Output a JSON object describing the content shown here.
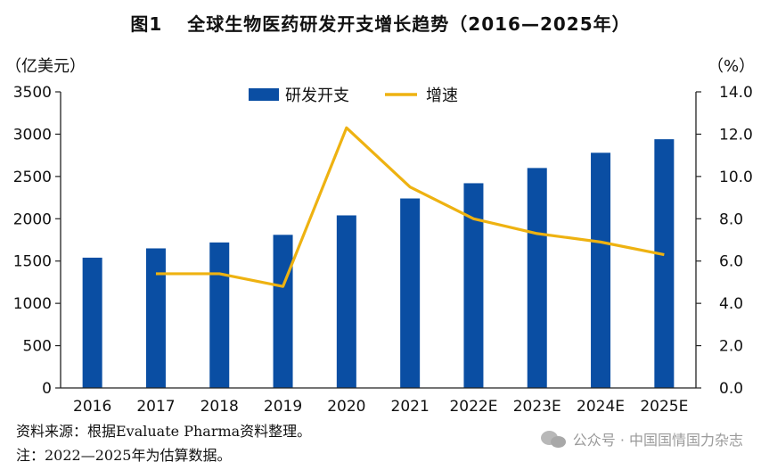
{
  "header": {
    "figure_label": "图1",
    "title": "全球生物医药研发开支增长趋势（2016—2025年）"
  },
  "chart_data": {
    "type": "bar",
    "categories": [
      "2016",
      "2017",
      "2018",
      "2019",
      "2020",
      "2021",
      "2022E",
      "2023E",
      "2024E",
      "2025E"
    ],
    "series": [
      {
        "name": "研发开支",
        "type": "bar",
        "axis": "left",
        "color": "#0a4ea3",
        "values": [
          1540,
          1650,
          1720,
          1810,
          2040,
          2240,
          2420,
          2600,
          2780,
          2940
        ]
      },
      {
        "name": "增速",
        "type": "line",
        "axis": "right",
        "color": "#eeb211",
        "values": [
          null,
          5.4,
          5.4,
          4.8,
          12.3,
          9.5,
          8.0,
          7.3,
          6.9,
          6.3
        ]
      }
    ],
    "left_axis": {
      "unit": "（亿美元）",
      "ylim": [
        0,
        3500
      ],
      "ticks": [
        "0",
        "500",
        "1000",
        "1500",
        "2000",
        "2500",
        "3000",
        "3500"
      ]
    },
    "right_axis": {
      "unit": "（%）",
      "ylim": [
        0,
        14
      ],
      "ticks": [
        "0.0",
        "2.0",
        "4.0",
        "6.0",
        "8.0",
        "10.0",
        "12.0",
        "14.0"
      ]
    },
    "legend_position": "top-center"
  },
  "notes": {
    "source": "资料来源：根据Evaluate Pharma资料整理。",
    "note": "注：2022—2025年为估算数据。"
  },
  "watermark": {
    "text": "公众号 · 中国国情国力杂志",
    "icon": "wechat-icon"
  }
}
